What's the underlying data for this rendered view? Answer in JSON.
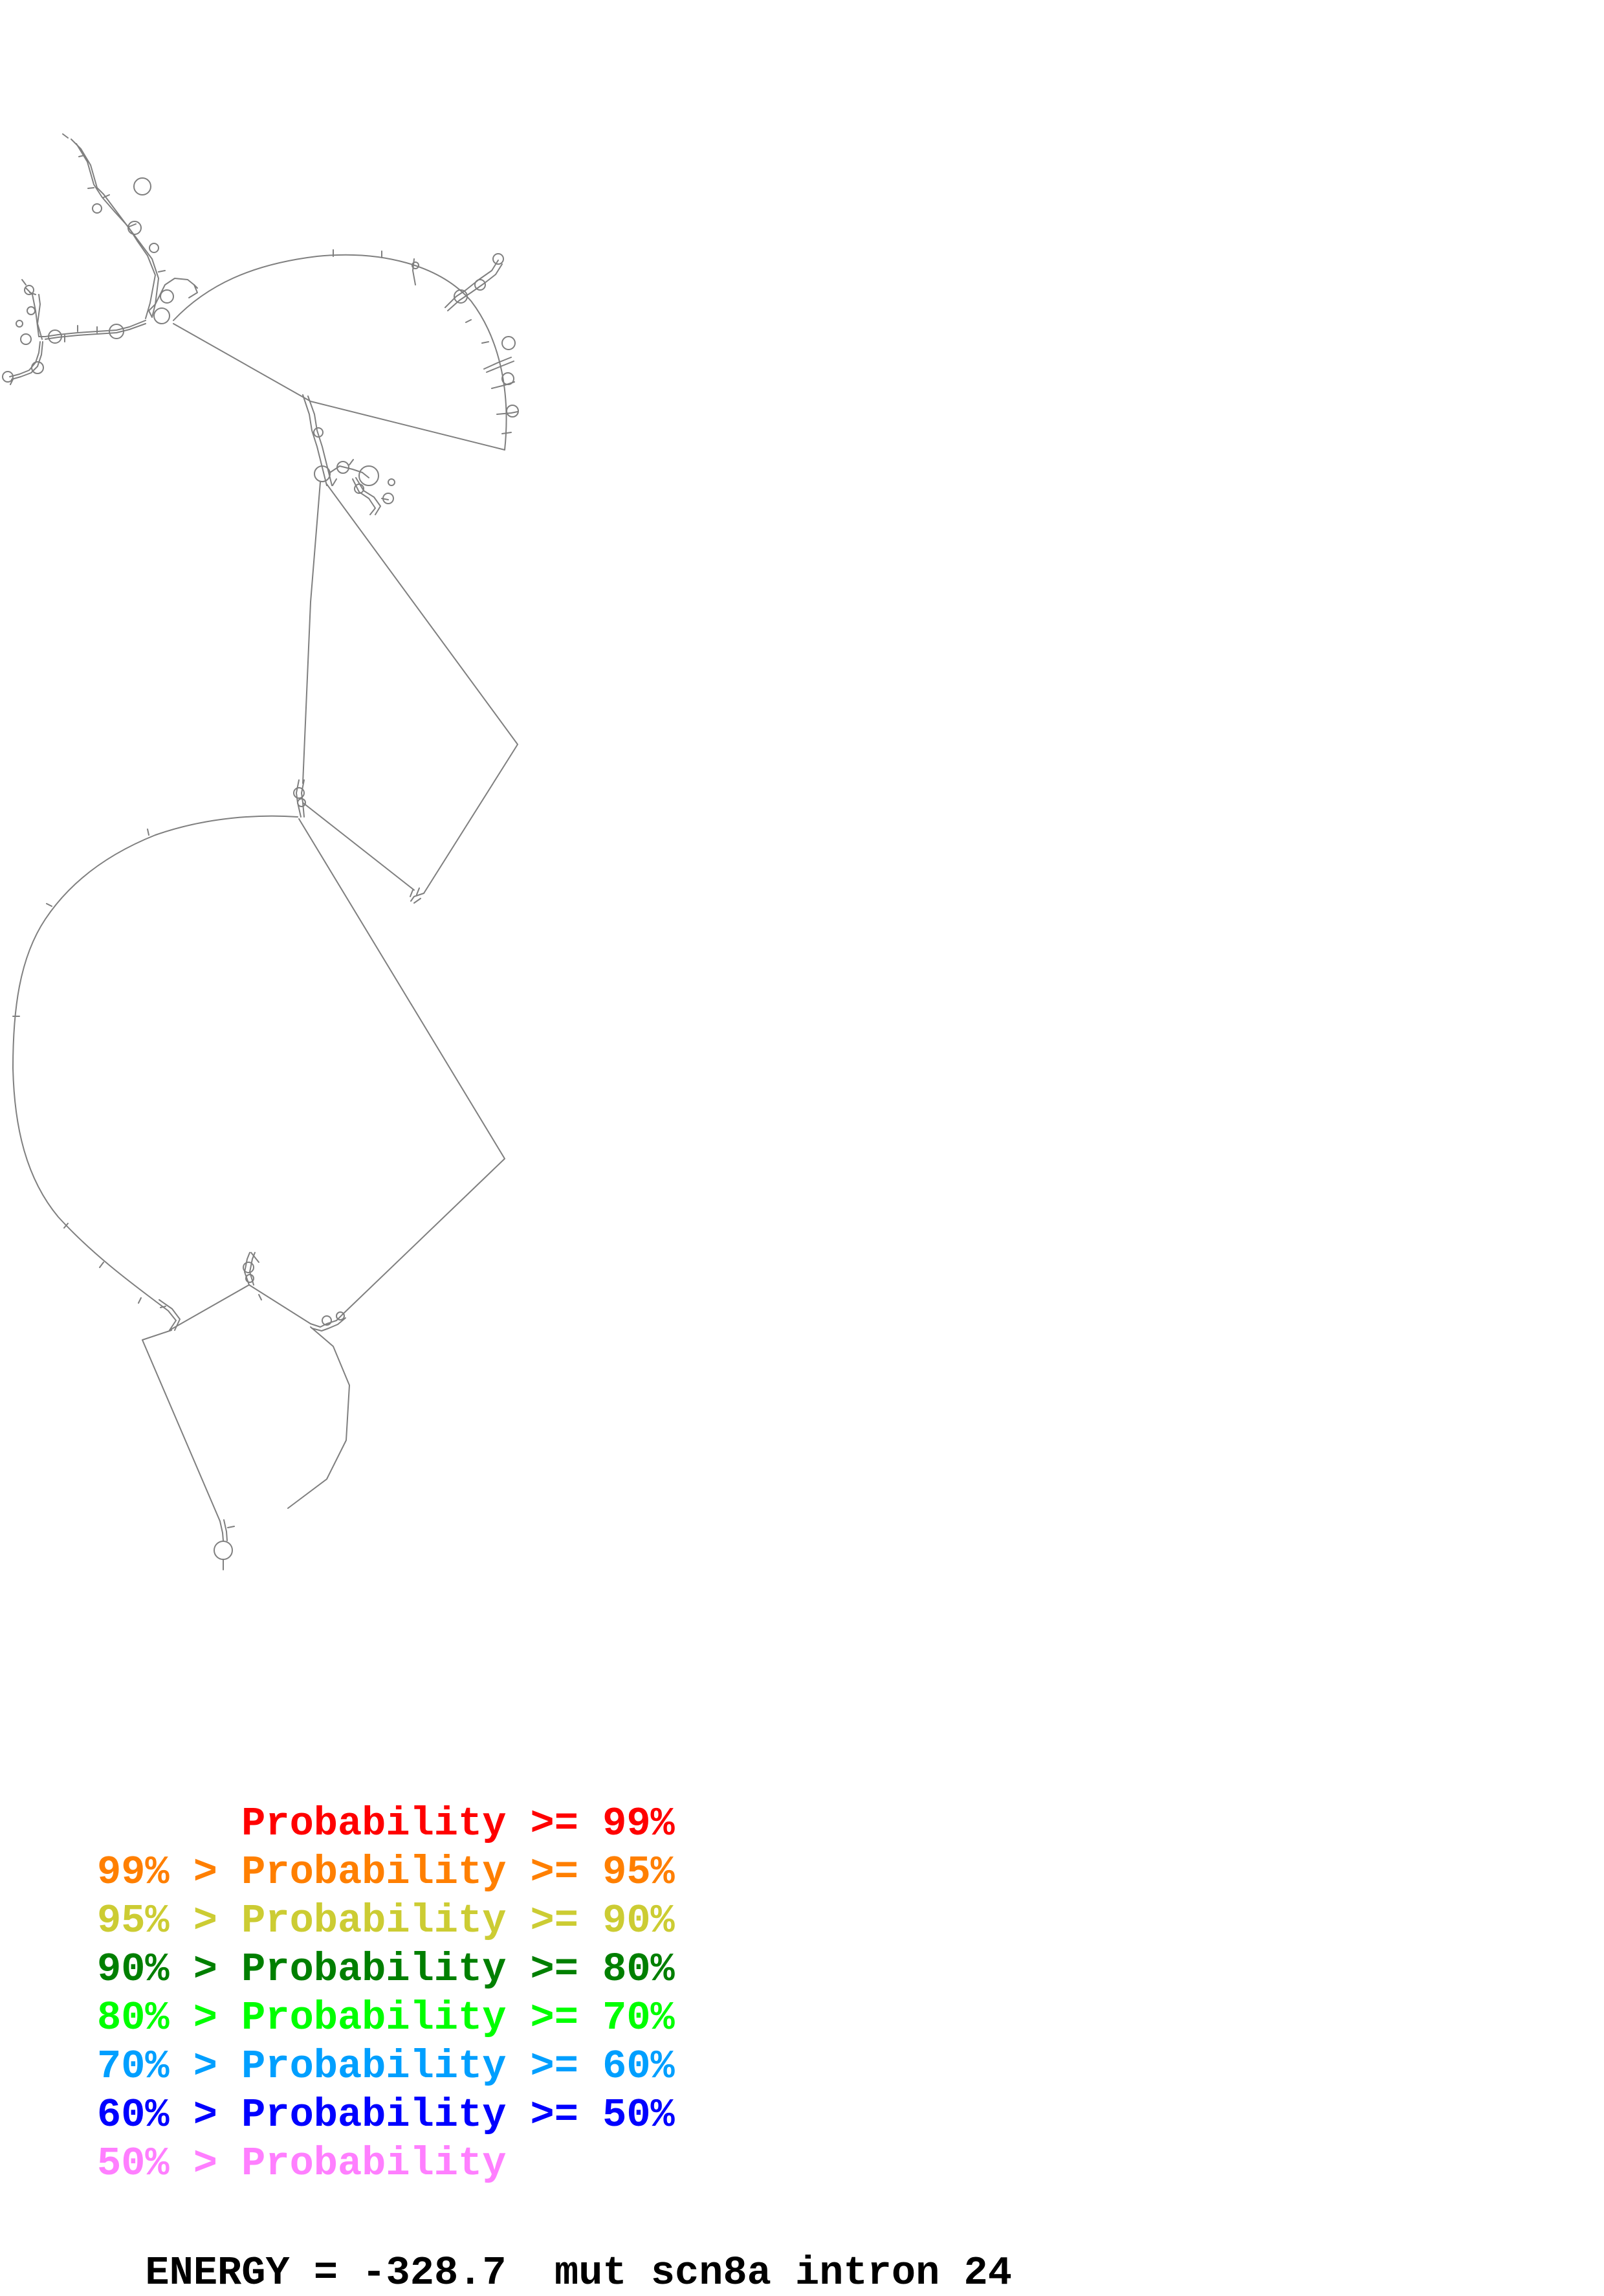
{
  "colors": {
    "backbone": "#7f7f7f",
    "red": "#ff0000",
    "orange": "#ff7f00",
    "yellow": "#cccc33",
    "darkgreen": "#007f00",
    "green": "#00ff00",
    "cyan": "#009fff",
    "blue": "#0000ff",
    "pink": "#ff7fff",
    "text": "#000000"
  },
  "legend": [
    {
      "prefix": "",
      "gt": "",
      "label": "Probability",
      "ge": ">=",
      "pct": "99%",
      "color": "#ff0000"
    },
    {
      "prefix": "99%",
      "gt": ">",
      "label": "Probability",
      "ge": ">=",
      "pct": "95%",
      "color": "#ff7f00"
    },
    {
      "prefix": "95%",
      "gt": ">",
      "label": "Probability",
      "ge": ">=",
      "pct": "90%",
      "color": "#cccc33"
    },
    {
      "prefix": "90%",
      "gt": ">",
      "label": "Probability",
      "ge": ">=",
      "pct": "80%",
      "color": "#007f00"
    },
    {
      "prefix": "80%",
      "gt": ">",
      "label": "Probability",
      "ge": ">=",
      "pct": "70%",
      "color": "#00ff00"
    },
    {
      "prefix": "70%",
      "gt": ">",
      "label": "Probability",
      "ge": ">=",
      "pct": "60%",
      "color": "#009fff"
    },
    {
      "prefix": "60%",
      "gt": ">",
      "label": "Probability",
      "ge": ">=",
      "pct": "50%",
      "color": "#0000ff"
    },
    {
      "prefix": "50%",
      "gt": ">",
      "label": "Probability",
      "ge": "",
      "pct": "",
      "color": "#ff7fff"
    }
  ],
  "energy": {
    "label": "ENERGY",
    "equals": "=",
    "value": "-328.7",
    "sequence_name": "mut scn8a intron 24"
  }
}
